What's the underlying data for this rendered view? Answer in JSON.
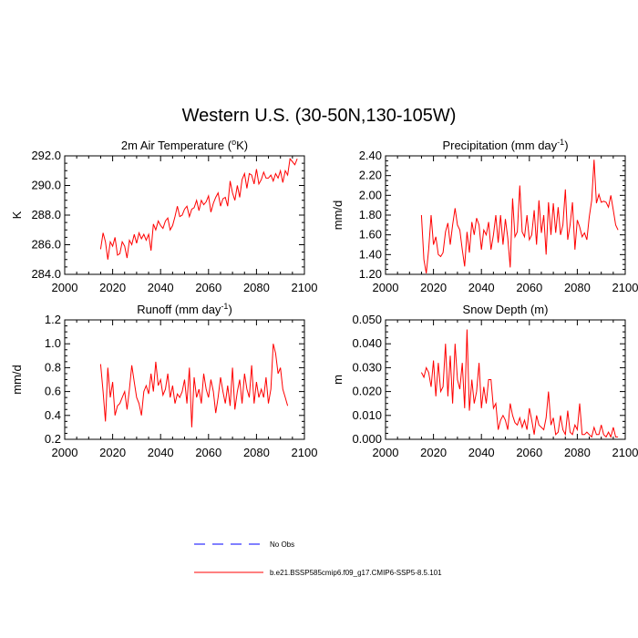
{
  "title": "Western U.S. (30-50N,130-105W)",
  "chart_data": [
    {
      "type": "line",
      "title": "2m Air Temperature (",
      "title_sup": "o",
      "title_tail": "K)",
      "ylabel": "K",
      "xlim": [
        2000,
        2100
      ],
      "ylim": [
        284.0,
        292.0
      ],
      "xticks": [
        "2000",
        "2020",
        "2040",
        "2060",
        "2080",
        "2100"
      ],
      "yticks": [
        "284.0",
        "286.0",
        "288.0",
        "290.0",
        "292.0"
      ],
      "series": [
        {
          "color": "#ff0000",
          "x_start": 2015,
          "values": [
            285.7,
            286.8,
            286.2,
            285.0,
            286.2,
            285.9,
            286.5,
            285.3,
            285.4,
            286.2,
            285.9,
            285.1,
            286.3,
            286.0,
            286.7,
            286.1,
            286.8,
            286.4,
            286.7,
            286.3,
            286.7,
            285.6,
            287.4,
            287.0,
            287.6,
            287.3,
            287.1,
            287.6,
            287.8,
            287.0,
            287.3,
            287.9,
            288.6,
            287.9,
            288.0,
            288.4,
            288.6,
            287.9,
            288.4,
            288.5,
            289.0,
            288.3,
            289.0,
            288.7,
            288.9,
            289.3,
            288.2,
            288.8,
            289.2,
            289.5,
            288.6,
            289.1,
            289.2,
            288.6,
            290.3,
            289.5,
            289.0,
            290.0,
            289.2,
            290.4,
            290.8,
            289.8,
            290.8,
            290.7,
            290.1,
            291.1,
            290.1,
            290.4,
            290.9,
            290.5,
            290.5,
            290.7,
            290.3,
            290.8,
            290.5,
            291.0,
            290.2,
            291.0,
            290.7,
            291.8,
            291.6,
            291.4,
            291.8
          ]
        }
      ]
    },
    {
      "type": "line",
      "title": "Precipitation (mm day",
      "title_sup": "-1",
      "title_tail": ")",
      "ylabel": "mm/d",
      "xlim": [
        2000,
        2100
      ],
      "ylim": [
        1.2,
        2.4
      ],
      "xticks": [
        "2000",
        "2020",
        "2040",
        "2060",
        "2080",
        "2100"
      ],
      "yticks": [
        "1.20",
        "1.40",
        "1.60",
        "1.80",
        "2.00",
        "2.20",
        "2.40"
      ],
      "series": [
        {
          "color": "#ff0000",
          "x_start": 2015,
          "values": [
            1.8,
            1.35,
            1.21,
            1.45,
            1.8,
            1.5,
            1.58,
            1.4,
            1.38,
            1.42,
            1.63,
            1.72,
            1.5,
            1.7,
            1.87,
            1.7,
            1.65,
            1.45,
            1.28,
            1.63,
            1.42,
            1.73,
            1.6,
            1.77,
            1.7,
            1.45,
            1.65,
            1.6,
            1.73,
            1.45,
            1.6,
            1.8,
            1.52,
            1.8,
            1.5,
            1.76,
            1.57,
            1.27,
            1.97,
            1.58,
            1.63,
            2.1,
            1.63,
            1.58,
            1.8,
            1.55,
            1.6,
            1.85,
            1.5,
            1.95,
            1.62,
            1.8,
            1.4,
            1.93,
            1.6,
            1.92,
            1.62,
            1.88,
            1.6,
            1.7,
            2.06,
            1.55,
            1.7,
            1.93,
            1.45,
            1.75,
            1.68,
            1.58,
            1.62,
            1.55,
            1.78,
            1.95,
            2.36,
            1.92,
            2.01,
            1.93,
            1.94,
            1.93,
            1.88,
            2.0,
            1.85,
            1.7,
            1.65
          ]
        }
      ]
    },
    {
      "type": "line",
      "title": "Runoff (mm day",
      "title_sup": "-1",
      "title_tail": ")",
      "ylabel": "mm/d",
      "xlim": [
        2000,
        2100
      ],
      "ylim": [
        0.2,
        1.2
      ],
      "xticks": [
        "2000",
        "2020",
        "2040",
        "2060",
        "2080",
        "2100"
      ],
      "yticks": [
        "0.2",
        "0.4",
        "0.6",
        "0.8",
        "1.0",
        "1.2"
      ],
      "series": [
        {
          "color": "#ff0000",
          "x_start": 2015,
          "values": [
            0.83,
            0.6,
            0.35,
            0.8,
            0.55,
            0.68,
            0.4,
            0.48,
            0.5,
            0.55,
            0.6,
            0.45,
            0.62,
            0.82,
            0.68,
            0.55,
            0.5,
            0.4,
            0.6,
            0.65,
            0.58,
            0.75,
            0.6,
            0.85,
            0.65,
            0.7,
            0.57,
            0.62,
            0.75,
            0.55,
            0.65,
            0.5,
            0.58,
            0.55,
            0.6,
            0.7,
            0.5,
            0.8,
            0.3,
            0.72,
            0.55,
            0.62,
            0.5,
            0.75,
            0.62,
            0.55,
            0.7,
            0.6,
            0.42,
            0.55,
            0.72,
            0.6,
            0.5,
            0.65,
            0.48,
            0.8,
            0.45,
            0.6,
            0.7,
            0.5,
            0.75,
            0.62,
            0.55,
            0.82,
            0.5,
            0.68,
            0.55,
            0.62,
            0.55,
            0.72,
            0.5,
            0.62,
            1.0,
            0.92,
            0.75,
            0.8,
            0.62,
            0.55,
            0.48
          ]
        }
      ]
    },
    {
      "type": "line",
      "title": "Snow Depth (m)",
      "ylabel": "m",
      "xlim": [
        2000,
        2100
      ],
      "ylim": [
        0.0,
        0.05
      ],
      "xticks": [
        "2000",
        "2020",
        "2040",
        "2060",
        "2080",
        "2100"
      ],
      "yticks": [
        "0.000",
        "0.010",
        "0.020",
        "0.030",
        "0.040",
        "0.050"
      ],
      "series": [
        {
          "color": "#ff0000",
          "x_start": 2015,
          "values": [
            0.028,
            0.026,
            0.03,
            0.028,
            0.022,
            0.033,
            0.018,
            0.032,
            0.02,
            0.022,
            0.04,
            0.018,
            0.035,
            0.015,
            0.04,
            0.025,
            0.021,
            0.032,
            0.013,
            0.046,
            0.012,
            0.025,
            0.015,
            0.02,
            0.032,
            0.013,
            0.022,
            0.015,
            0.025,
            0.025,
            0.013,
            0.015,
            0.004,
            0.008,
            0.01,
            0.008,
            0.004,
            0.015,
            0.01,
            0.007,
            0.006,
            0.009,
            0.005,
            0.008,
            0.004,
            0.013,
            0.008,
            0.002,
            0.01,
            0.006,
            0.005,
            0.004,
            0.009,
            0.02,
            0.006,
            0.009,
            0.002,
            0.003,
            0.01,
            0.004,
            0.002,
            0.012,
            0.003,
            0.002,
            0.006,
            0.004,
            0.015,
            0.002,
            0.002,
            0.003,
            0.002,
            0.001,
            0.005,
            0.002,
            0.002,
            0.006,
            0.002,
            0.001,
            0.003,
            0.001,
            0.005,
            0.001,
            0.001
          ]
        }
      ]
    }
  ],
  "legend": [
    {
      "label": "No Obs",
      "color": "#0000ff",
      "dashed": true
    },
    {
      "label": "b.e21.BSSP585cmip6.f09_g17.CMIP6-SSP5-8.5.101",
      "color": "#ff0000",
      "dashed": false
    }
  ]
}
